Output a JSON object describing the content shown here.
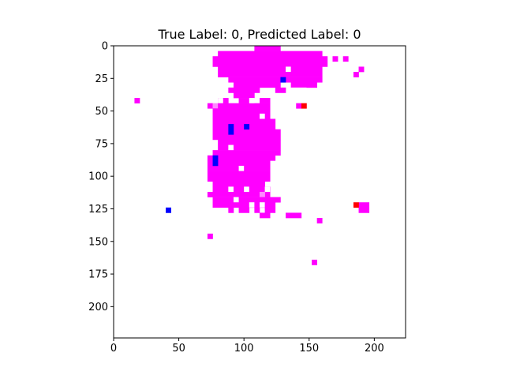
{
  "chart_data": {
    "type": "heatmap",
    "title": "True Label: 0, Predicted Label: 0",
    "xlabel": "",
    "ylabel": "",
    "x_range": [
      0,
      224
    ],
    "y_range": [
      224,
      0
    ],
    "x_ticks": [
      0,
      50,
      100,
      150,
      200
    ],
    "y_ticks": [
      0,
      25,
      50,
      75,
      100,
      125,
      150,
      175,
      200
    ],
    "grid": false,
    "background": "#ffffff",
    "colors": {
      "magenta": "#ff00ff",
      "light_magenta": "#ff55ff",
      "pink": "#ff88ff",
      "blue": "#0000ff",
      "red": "#ff0000"
    },
    "block_size": 4,
    "blocks": [
      {
        "x": 108,
        "y": 0,
        "w": 20,
        "h": 4,
        "color": "magenta"
      },
      {
        "x": 80,
        "y": 4,
        "w": 80,
        "h": 4,
        "color": "magenta"
      },
      {
        "x": 76,
        "y": 8,
        "w": 88,
        "h": 8,
        "color": "magenta"
      },
      {
        "x": 168,
        "y": 8,
        "w": 4,
        "h": 4,
        "color": "magenta"
      },
      {
        "x": 176,
        "y": 8,
        "w": 4,
        "h": 4,
        "color": "magenta"
      },
      {
        "x": 80,
        "y": 16,
        "w": 80,
        "h": 8,
        "color": "magenta"
      },
      {
        "x": 88,
        "y": 24,
        "w": 72,
        "h": 4,
        "color": "magenta"
      },
      {
        "x": 188,
        "y": 16,
        "w": 4,
        "h": 4,
        "color": "magenta"
      },
      {
        "x": 184,
        "y": 20,
        "w": 4,
        "h": 4,
        "color": "magenta"
      },
      {
        "x": 92,
        "y": 28,
        "w": 36,
        "h": 4,
        "color": "magenta"
      },
      {
        "x": 136,
        "y": 28,
        "w": 20,
        "h": 4,
        "color": "magenta"
      },
      {
        "x": 88,
        "y": 32,
        "w": 24,
        "h": 4,
        "color": "magenta"
      },
      {
        "x": 124,
        "y": 32,
        "w": 8,
        "h": 4,
        "color": "magenta"
      },
      {
        "x": 92,
        "y": 36,
        "w": 16,
        "h": 4,
        "color": "magenta"
      },
      {
        "x": 16,
        "y": 40,
        "w": 4,
        "h": 4,
        "color": "magenta"
      },
      {
        "x": 80,
        "y": 40,
        "w": 8,
        "h": 4,
        "color": "magenta"
      },
      {
        "x": 96,
        "y": 40,
        "w": 8,
        "h": 4,
        "color": "magenta"
      },
      {
        "x": 112,
        "y": 40,
        "w": 8,
        "h": 4,
        "color": "magenta"
      },
      {
        "x": 72,
        "y": 44,
        "w": 4,
        "h": 4,
        "color": "magenta"
      },
      {
        "x": 76,
        "y": 44,
        "w": 4,
        "h": 4,
        "color": "pink"
      },
      {
        "x": 80,
        "y": 44,
        "w": 40,
        "h": 4,
        "color": "magenta"
      },
      {
        "x": 140,
        "y": 44,
        "w": 4,
        "h": 4,
        "color": "magenta"
      },
      {
        "x": 76,
        "y": 48,
        "w": 44,
        "h": 4,
        "color": "magenta"
      },
      {
        "x": 76,
        "y": 52,
        "w": 36,
        "h": 4,
        "color": "magenta"
      },
      {
        "x": 116,
        "y": 52,
        "w": 4,
        "h": 4,
        "color": "magenta"
      },
      {
        "x": 76,
        "y": 56,
        "w": 48,
        "h": 8,
        "color": "magenta"
      },
      {
        "x": 76,
        "y": 64,
        "w": 52,
        "h": 8,
        "color": "magenta"
      },
      {
        "x": 80,
        "y": 72,
        "w": 48,
        "h": 8,
        "color": "magenta"
      },
      {
        "x": 76,
        "y": 80,
        "w": 52,
        "h": 4,
        "color": "magenta"
      },
      {
        "x": 72,
        "y": 84,
        "w": 52,
        "h": 4,
        "color": "magenta"
      },
      {
        "x": 72,
        "y": 88,
        "w": 48,
        "h": 8,
        "color": "magenta"
      },
      {
        "x": 72,
        "y": 96,
        "w": 48,
        "h": 8,
        "color": "magenta"
      },
      {
        "x": 76,
        "y": 104,
        "w": 40,
        "h": 4,
        "color": "magenta"
      },
      {
        "x": 76,
        "y": 108,
        "w": 44,
        "h": 4,
        "color": "magenta"
      },
      {
        "x": 72,
        "y": 112,
        "w": 48,
        "h": 4,
        "color": "magenta"
      },
      {
        "x": 112,
        "y": 112,
        "w": 4,
        "h": 4,
        "color": "pink"
      },
      {
        "x": 76,
        "y": 116,
        "w": 52,
        "h": 4,
        "color": "magenta"
      },
      {
        "x": 76,
        "y": 120,
        "w": 48,
        "h": 4,
        "color": "magenta"
      },
      {
        "x": 88,
        "y": 124,
        "w": 4,
        "h": 4,
        "color": "magenta"
      },
      {
        "x": 96,
        "y": 124,
        "w": 8,
        "h": 4,
        "color": "magenta"
      },
      {
        "x": 108,
        "y": 124,
        "w": 4,
        "h": 4,
        "color": "magenta"
      },
      {
        "x": 116,
        "y": 124,
        "w": 8,
        "h": 4,
        "color": "magenta"
      },
      {
        "x": 112,
        "y": 128,
        "w": 8,
        "h": 4,
        "color": "magenta"
      },
      {
        "x": 132,
        "y": 128,
        "w": 12,
        "h": 4,
        "color": "magenta"
      },
      {
        "x": 156,
        "y": 132,
        "w": 4,
        "h": 4,
        "color": "magenta"
      },
      {
        "x": 188,
        "y": 120,
        "w": 8,
        "h": 4,
        "color": "magenta"
      },
      {
        "x": 188,
        "y": 124,
        "w": 8,
        "h": 4,
        "color": "magenta"
      },
      {
        "x": 72,
        "y": 144,
        "w": 4,
        "h": 4,
        "color": "magenta"
      },
      {
        "x": 152,
        "y": 164,
        "w": 4,
        "h": 4,
        "color": "magenta"
      },
      {
        "x": 128,
        "y": 24,
        "w": 4,
        "h": 4,
        "color": "blue"
      },
      {
        "x": 88,
        "y": 60,
        "w": 4,
        "h": 8,
        "color": "blue"
      },
      {
        "x": 100,
        "y": 60,
        "w": 4,
        "h": 4,
        "color": "blue"
      },
      {
        "x": 76,
        "y": 84,
        "w": 4,
        "h": 8,
        "color": "blue"
      },
      {
        "x": 40,
        "y": 124,
        "w": 4,
        "h": 4,
        "color": "blue"
      },
      {
        "x": 144,
        "y": 44,
        "w": 4,
        "h": 4,
        "color": "red"
      },
      {
        "x": 184,
        "y": 120,
        "w": 4,
        "h": 4,
        "color": "red"
      }
    ],
    "holes": [
      {
        "x": 132,
        "y": 16,
        "w": 4,
        "h": 4
      },
      {
        "x": 136,
        "y": 32,
        "w": 12,
        "h": 4
      },
      {
        "x": 80,
        "y": 40,
        "w": 4,
        "h": 4
      },
      {
        "x": 104,
        "y": 40,
        "w": 4,
        "h": 4
      },
      {
        "x": 112,
        "y": 52,
        "w": 4,
        "h": 4
      },
      {
        "x": 88,
        "y": 76,
        "w": 4,
        "h": 4
      },
      {
        "x": 96,
        "y": 92,
        "w": 4,
        "h": 4
      },
      {
        "x": 88,
        "y": 108,
        "w": 4,
        "h": 4
      },
      {
        "x": 100,
        "y": 108,
        "w": 4,
        "h": 4
      },
      {
        "x": 116,
        "y": 108,
        "w": 4,
        "h": 4
      },
      {
        "x": 92,
        "y": 116,
        "w": 4,
        "h": 4
      },
      {
        "x": 104,
        "y": 120,
        "w": 4,
        "h": 4
      },
      {
        "x": 112,
        "y": 120,
        "w": 4,
        "h": 4
      }
    ]
  }
}
